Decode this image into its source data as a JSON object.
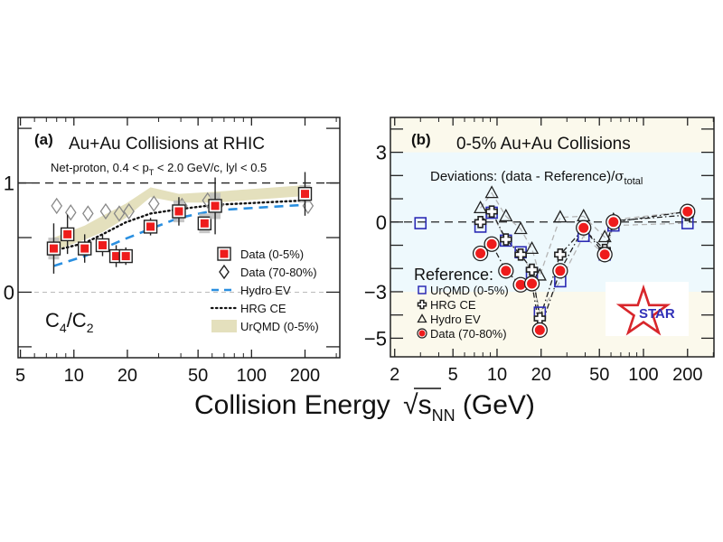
{
  "xlabel": {
    "main": "Collision Energy ",
    "sqrt": "s",
    "sub": "NN",
    "unit": " (GeV)"
  },
  "chart_data": [
    {
      "type": "scatter",
      "panel": "a",
      "panel_label": "(a)",
      "title": "Au+Au Collisions at RHIC",
      "subtitle": {
        "pre": "Net-proton, 0.4 < p",
        "sub": "T",
        "post": " < 2.0 GeV/c, lyl < 0.5"
      },
      "ylabel": {
        "base": "C",
        "sub1": "4",
        "slash": "/C",
        "sub2": "2"
      },
      "xscale": "log",
      "xlim": [
        4.85,
        314
      ],
      "ylim": [
        -0.6,
        1.6
      ],
      "xticks": [
        5,
        10,
        20,
        50,
        100,
        200
      ],
      "xticklabels": [
        "5",
        "10",
        "20",
        "50",
        "100",
        "200"
      ],
      "yticks": [
        -0.5,
        0,
        0.5,
        1,
        1.5
      ],
      "yticklabels": [
        "",
        "0",
        "",
        "1",
        ""
      ],
      "reference_lines": [
        {
          "y": 1,
          "style": "dashed"
        },
        {
          "y": 0,
          "style": "dashed-light"
        }
      ],
      "legend": {
        "position": "lower-right",
        "entries": [
          "Data (0-5%)",
          "Data (70-80%)",
          "Hydro EV",
          "HRG CE",
          "UrQMD (0-5%)"
        ]
      },
      "series": [
        {
          "name": "Data (0-5%)",
          "marker": "square-red",
          "x": [
            7.7,
            9.2,
            11.5,
            14.5,
            17.3,
            19.6,
            27,
            39,
            54.4,
            62.4,
            200
          ],
          "y": [
            0.4,
            0.53,
            0.4,
            0.43,
            0.33,
            0.33,
            0.6,
            0.74,
            0.63,
            0.79,
            0.9
          ],
          "stat_err": [
            0.23,
            0.18,
            0.13,
            0.1,
            0.1,
            0.08,
            0.08,
            0.13,
            0.04,
            0.26,
            0.2
          ],
          "sys_err": [
            0.1,
            0.05,
            0.05,
            0.04,
            0.05,
            0.04,
            0.04,
            0.1,
            0.09,
            0.12,
            0.08
          ]
        },
        {
          "name": "Data (70-80%)",
          "marker": "diamond-open",
          "x": [
            8.0,
            9.6,
            12.0,
            15.1,
            18.0,
            20.4,
            28.2,
            40.6,
            56.6,
            65.0,
            208
          ],
          "y": [
            0.79,
            0.73,
            0.72,
            0.74,
            0.72,
            0.74,
            0.81,
            0.79,
            0.84,
            0.8,
            0.79
          ]
        },
        {
          "name": "Hydro EV",
          "style": "dashed-blue",
          "x": [
            7.7,
            11.5,
            19.6,
            27,
            39,
            62.4,
            200
          ],
          "y": [
            0.24,
            0.33,
            0.49,
            0.58,
            0.68,
            0.75,
            0.8
          ]
        },
        {
          "name": "HRG CE",
          "style": "dotted-black",
          "x": [
            7.7,
            11.5,
            14.5,
            19.6,
            27,
            39,
            62.4,
            200
          ],
          "y": [
            0.38,
            0.45,
            0.53,
            0.64,
            0.72,
            0.76,
            0.8,
            0.84
          ]
        },
        {
          "name": "UrQMD (0-5%)",
          "style": "band-khaki",
          "x": [
            7.7,
            11.5,
            14.5,
            19.6,
            27,
            39,
            62.4,
            200
          ],
          "y_low": [
            0.38,
            0.48,
            0.55,
            0.68,
            0.87,
            0.82,
            0.82,
            0.88
          ],
          "y_high": [
            0.5,
            0.61,
            0.7,
            0.81,
            0.96,
            0.9,
            0.92,
            0.98
          ]
        }
      ]
    },
    {
      "type": "scatter",
      "panel": "b",
      "panel_label": "(b)",
      "title": "0-5% Au+Au Collisions",
      "subtitle": {
        "pre": "Deviations: (data - Reference)/",
        "sigma": "σ",
        "sub": "total"
      },
      "xscale": "log",
      "xlim": [
        1.87,
        303
      ],
      "ylim": [
        -5.8,
        4.5
      ],
      "xticks": [
        2,
        5,
        10,
        20,
        50,
        100,
        200
      ],
      "xticklabels": [
        "2",
        "5",
        "10",
        "20",
        "50",
        "100",
        "200"
      ],
      "yticks": [
        -5,
        -4,
        -3,
        -2,
        -1,
        0,
        1,
        2,
        3,
        4
      ],
      "yticklabels": [
        "−5",
        "",
        "−3",
        "",
        "",
        "0",
        "",
        "",
        "3",
        ""
      ],
      "bands": [
        {
          "from": -3,
          "to": 3,
          "color": "#eef9fd"
        },
        {
          "outside": true,
          "color": "#fbf9ec"
        }
      ],
      "reference_lines": [
        {
          "y": 0,
          "style": "dashed"
        }
      ],
      "legend": {
        "position": "lower-left",
        "title": "Reference:",
        "entries": [
          "UrQMD (0-5%)",
          "HRG CE",
          "Hydro EV",
          "Data (70-80%)"
        ]
      },
      "logo": "STAR",
      "series": [
        {
          "name": "UrQMD (0-5%)",
          "marker": "square-open-blue",
          "connect": "dashed-grey",
          "x": [
            3.0,
            7.7,
            9.2,
            11.5,
            14.5,
            17.3,
            19.6,
            27,
            39,
            54.4,
            62.4,
            200
          ],
          "y": [
            -0.05,
            -0.2,
            0.4,
            -0.8,
            -1.3,
            -2.2,
            -3.9,
            -2.55,
            -0.6,
            -1.4,
            -0.15,
            -0.05
          ]
        },
        {
          "name": "HRG CE",
          "marker": "cross-open",
          "connect": "dashdot-black",
          "x": [
            7.7,
            9.2,
            11.5,
            14.5,
            17.3,
            19.6,
            27,
            39,
            54.4,
            62.4,
            200
          ],
          "y": [
            0.0,
            0.45,
            -0.75,
            -1.4,
            -2.05,
            -4.15,
            -1.4,
            -0.3,
            -1.2,
            0.05,
            0.3
          ]
        },
        {
          "name": "Hydro EV",
          "marker": "triangle-open",
          "connect": "dashed-grey",
          "x": [
            7.7,
            9.2,
            11.5,
            14.5,
            17.3,
            19.6,
            27,
            39,
            54.4,
            62.4,
            200
          ],
          "y": [
            0.6,
            1.25,
            0.25,
            -0.3,
            -1.15,
            -2.3,
            0.2,
            0.25,
            -0.65,
            0.1,
            0.45
          ]
        },
        {
          "name": "Data (70-80%)",
          "marker": "circle-red",
          "connect": "dashdot-black",
          "x": [
            7.7,
            9.2,
            11.5,
            14.5,
            17.3,
            19.6,
            27,
            39,
            54.4,
            62.4,
            200
          ],
          "y": [
            -1.35,
            -0.95,
            -2.1,
            -2.7,
            -2.65,
            -4.65,
            -2.1,
            -0.25,
            -1.4,
            0.0,
            0.45
          ]
        }
      ]
    }
  ]
}
